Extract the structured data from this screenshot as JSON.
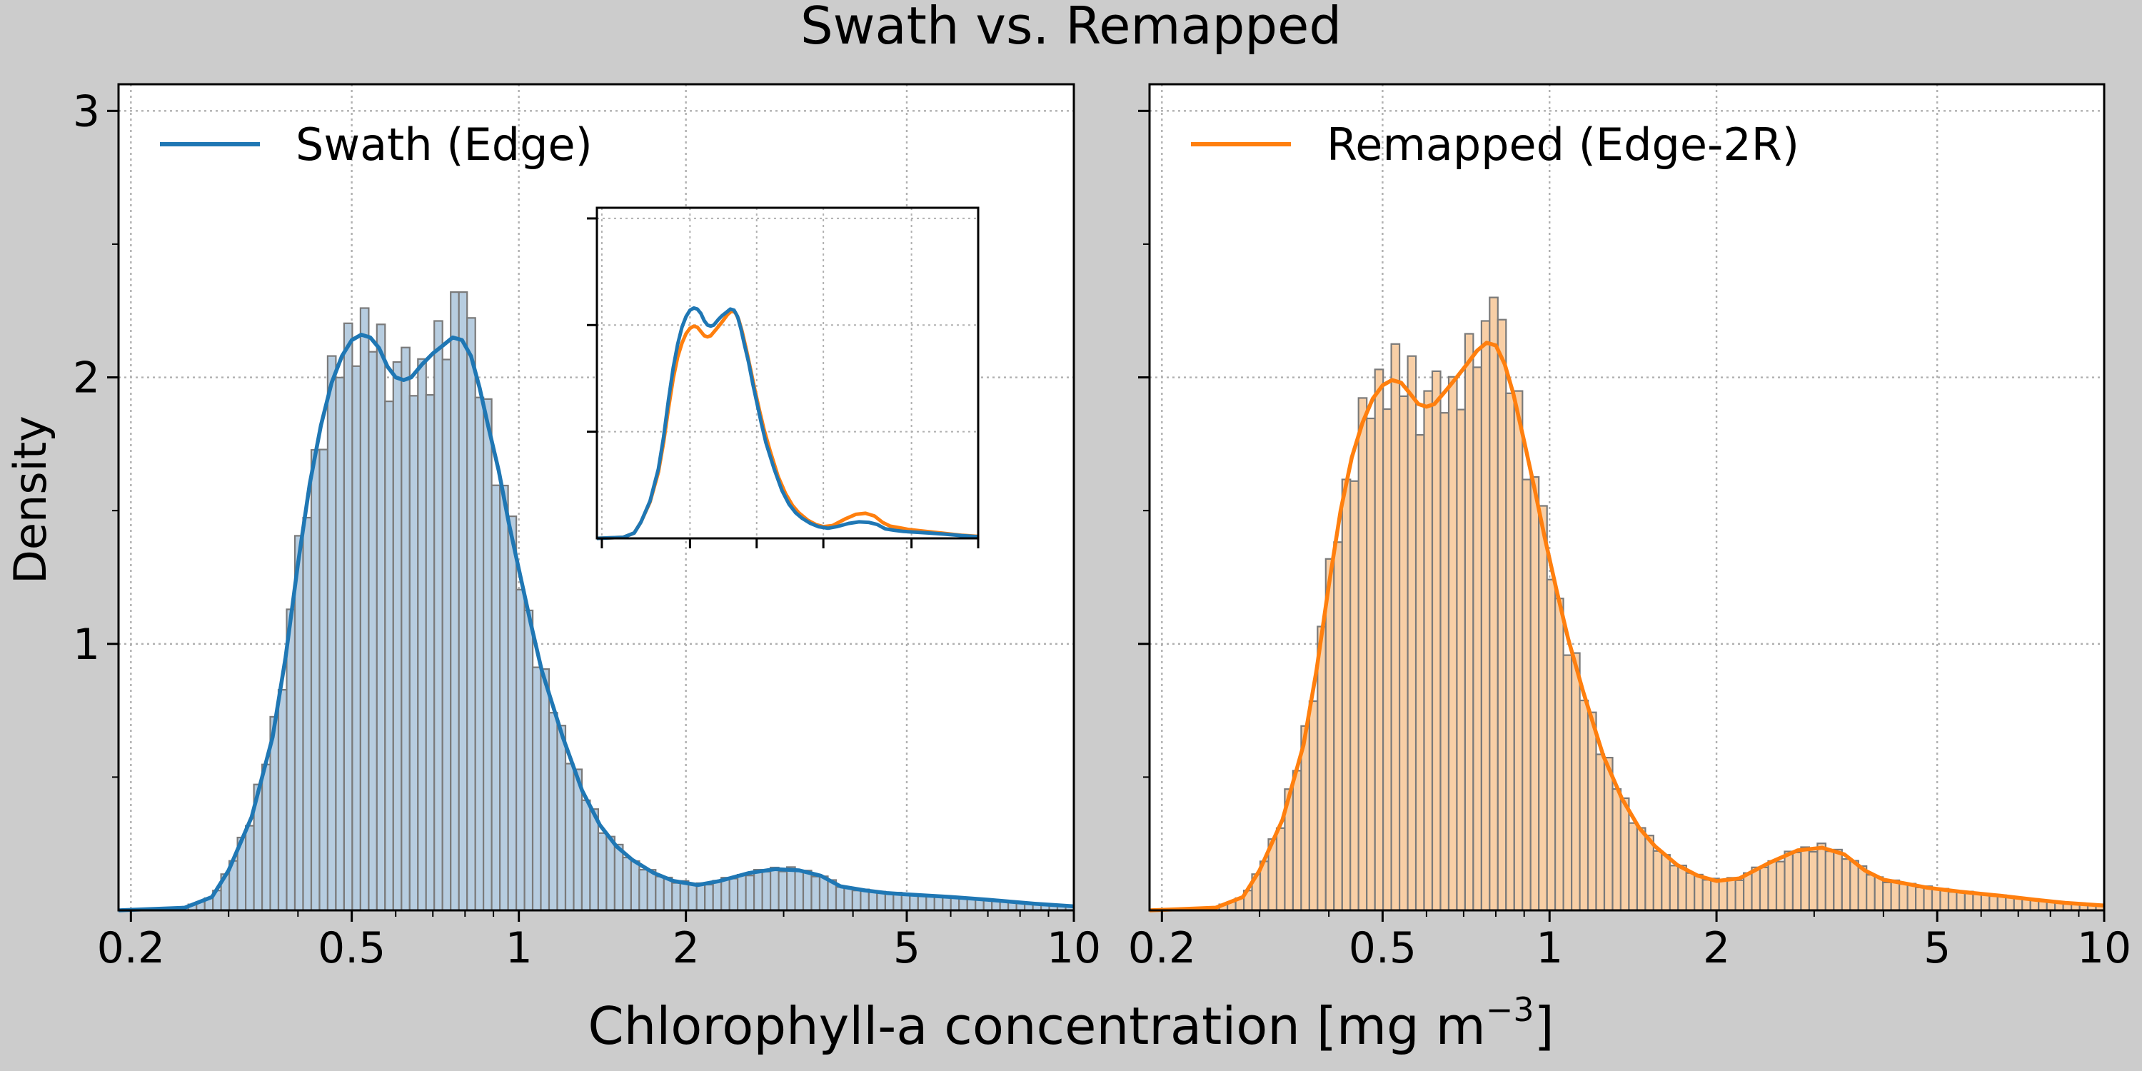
{
  "figure": {
    "title": "Swath vs. Remapped",
    "xlabel_main": "Chlorophyll-a concentration [mg m",
    "xlabel_sup": "−3",
    "xlabel_end": "]",
    "ylabel": "Density"
  },
  "chart_data": [
    {
      "type": "histogram+kde",
      "panel": "left",
      "legend": "Swath (Edge)",
      "legend_position": "top-left",
      "color": "#1f77b4",
      "bar_fill": "#b7cde0",
      "x_scale": "log",
      "xlim": [
        0.19,
        10
      ],
      "ylim": [
        0,
        3.1
      ],
      "x_ticks": [
        0.2,
        0.5,
        1,
        2,
        5,
        10
      ],
      "x_tick_labels": [
        "0.2",
        "0.5",
        "1",
        "2",
        "5",
        "10"
      ],
      "y_ticks": [
        1,
        2,
        3
      ],
      "y_tick_labels": [
        "1",
        "2",
        "3"
      ],
      "grid": true,
      "kde": [
        [
          0.19,
          0
        ],
        [
          0.25,
          0.01
        ],
        [
          0.28,
          0.05
        ],
        [
          0.3,
          0.15
        ],
        [
          0.33,
          0.35
        ],
        [
          0.36,
          0.65
        ],
        [
          0.38,
          0.95
        ],
        [
          0.4,
          1.3
        ],
        [
          0.42,
          1.6
        ],
        [
          0.44,
          1.82
        ],
        [
          0.46,
          1.98
        ],
        [
          0.48,
          2.08
        ],
        [
          0.5,
          2.14
        ],
        [
          0.52,
          2.16
        ],
        [
          0.54,
          2.15
        ],
        [
          0.56,
          2.11
        ],
        [
          0.58,
          2.04
        ],
        [
          0.6,
          2.0
        ],
        [
          0.62,
          1.99
        ],
        [
          0.64,
          2.0
        ],
        [
          0.67,
          2.05
        ],
        [
          0.7,
          2.09
        ],
        [
          0.73,
          2.12
        ],
        [
          0.76,
          2.15
        ],
        [
          0.79,
          2.14
        ],
        [
          0.82,
          2.08
        ],
        [
          0.85,
          1.96
        ],
        [
          0.88,
          1.82
        ],
        [
          0.92,
          1.65
        ],
        [
          0.96,
          1.45
        ],
        [
          1.0,
          1.28
        ],
        [
          1.05,
          1.08
        ],
        [
          1.1,
          0.9
        ],
        [
          1.2,
          0.65
        ],
        [
          1.3,
          0.45
        ],
        [
          1.4,
          0.32
        ],
        [
          1.5,
          0.24
        ],
        [
          1.6,
          0.19
        ],
        [
          1.75,
          0.14
        ],
        [
          1.9,
          0.11
        ],
        [
          2.1,
          0.095
        ],
        [
          2.3,
          0.11
        ],
        [
          2.6,
          0.14
        ],
        [
          2.9,
          0.155
        ],
        [
          3.2,
          0.15
        ],
        [
          3.5,
          0.13
        ],
        [
          3.8,
          0.09
        ],
        [
          4.2,
          0.075
        ],
        [
          4.6,
          0.065
        ],
        [
          5.0,
          0.06
        ],
        [
          6.0,
          0.05
        ],
        [
          7.0,
          0.04
        ],
        [
          8.5,
          0.025
        ],
        [
          10.0,
          0.015
        ]
      ],
      "histogram": {
        "bins": 115,
        "x_range": [
          0.2,
          10
        ],
        "peaks": [
          [
            0.53,
            2.26
          ],
          [
            0.78,
            2.32
          ]
        ]
      }
    },
    {
      "type": "histogram+kde",
      "panel": "right",
      "legend": "Remapped (Edge-2R)",
      "legend_position": "top-left",
      "color": "#ff7f0e",
      "bar_fill": "#f8cfa6",
      "x_scale": "log",
      "xlim": [
        0.19,
        10
      ],
      "ylim": [
        0,
        3.1
      ],
      "x_ticks": [
        0.2,
        0.5,
        1,
        2,
        5,
        10
      ],
      "x_tick_labels": [
        "0.2",
        "0.5",
        "1",
        "2",
        "5",
        "10"
      ],
      "y_ticks": [
        1,
        2,
        3
      ],
      "y_tick_labels": [
        "",
        "",
        ""
      ],
      "grid": true,
      "kde": [
        [
          0.19,
          0
        ],
        [
          0.25,
          0.01
        ],
        [
          0.28,
          0.05
        ],
        [
          0.3,
          0.15
        ],
        [
          0.33,
          0.34
        ],
        [
          0.36,
          0.62
        ],
        [
          0.38,
          0.9
        ],
        [
          0.4,
          1.22
        ],
        [
          0.42,
          1.5
        ],
        [
          0.44,
          1.7
        ],
        [
          0.46,
          1.83
        ],
        [
          0.48,
          1.92
        ],
        [
          0.5,
          1.97
        ],
        [
          0.52,
          1.99
        ],
        [
          0.54,
          1.98
        ],
        [
          0.56,
          1.94
        ],
        [
          0.58,
          1.9
        ],
        [
          0.6,
          1.89
        ],
        [
          0.62,
          1.9
        ],
        [
          0.65,
          1.95
        ],
        [
          0.68,
          2.0
        ],
        [
          0.71,
          2.05
        ],
        [
          0.74,
          2.1
        ],
        [
          0.77,
          2.13
        ],
        [
          0.8,
          2.12
        ],
        [
          0.83,
          2.05
        ],
        [
          0.86,
          1.94
        ],
        [
          0.9,
          1.76
        ],
        [
          0.94,
          1.58
        ],
        [
          0.98,
          1.4
        ],
        [
          1.03,
          1.2
        ],
        [
          1.08,
          1.02
        ],
        [
          1.15,
          0.82
        ],
        [
          1.25,
          0.58
        ],
        [
          1.35,
          0.42
        ],
        [
          1.45,
          0.31
        ],
        [
          1.55,
          0.24
        ],
        [
          1.7,
          0.17
        ],
        [
          1.85,
          0.13
        ],
        [
          2.0,
          0.11
        ],
        [
          2.2,
          0.12
        ],
        [
          2.5,
          0.18
        ],
        [
          2.8,
          0.225
        ],
        [
          3.1,
          0.235
        ],
        [
          3.4,
          0.21
        ],
        [
          3.7,
          0.15
        ],
        [
          4.0,
          0.115
        ],
        [
          4.4,
          0.1
        ],
        [
          4.8,
          0.085
        ],
        [
          5.5,
          0.07
        ],
        [
          6.5,
          0.055
        ],
        [
          7.5,
          0.04
        ],
        [
          8.5,
          0.028
        ],
        [
          10.0,
          0.018
        ]
      ],
      "histogram": {
        "bins": 115,
        "x_range": [
          0.2,
          10
        ],
        "peaks": [
          [
            0.56,
            2.08
          ],
          [
            0.8,
            2.3
          ]
        ]
      }
    },
    {
      "type": "line",
      "panel": "inset",
      "x_scale": "log",
      "xlim": [
        0.19,
        10
      ],
      "ylim": [
        0,
        3.1
      ],
      "series": [
        {
          "ref": 0,
          "color": "#1f77b4"
        },
        {
          "ref": 1,
          "color": "#ff7f0e"
        }
      ],
      "x_ticks": [
        0.2,
        0.5,
        1,
        2,
        5,
        10
      ],
      "y_ticks": [
        1,
        2,
        3
      ],
      "grid": true
    }
  ]
}
